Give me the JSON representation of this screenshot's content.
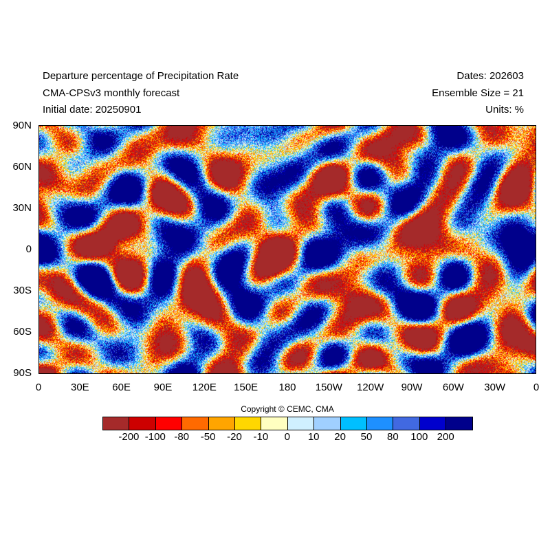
{
  "header": {
    "title": "Departure percentage of Precipitation Rate",
    "subtitle": "CMA-CPSv3 monthly forecast",
    "initial_date": "Initial date: 20250901",
    "dates": "Dates: 202603",
    "ensemble": "Ensemble Size = 21",
    "units": "Units: %"
  },
  "lat_labels": [
    "90N",
    "60N",
    "30N",
    "0",
    "30S",
    "60S",
    "90S"
  ],
  "lon_labels": [
    "0",
    "30E",
    "60E",
    "90E",
    "120E",
    "150E",
    "180",
    "150W",
    "120W",
    "90W",
    "60W",
    "30W",
    "0"
  ],
  "copyright": "Copyright © CEMC, CMA",
  "colorbar": {
    "colors": [
      "#a52a2a",
      "#cd0000",
      "#ff0000",
      "#ff6a00",
      "#ffa500",
      "#ffd700",
      "#ffffc0",
      "#d0f0ff",
      "#a0d0ff",
      "#00bfff",
      "#1e90ff",
      "#4169e1",
      "#0000cd",
      "#00008b"
    ],
    "labels": [
      "-200",
      "-100",
      "-80",
      "-50",
      "-20",
      "-10",
      "0",
      "10",
      "20",
      "50",
      "80",
      "100",
      "200"
    ]
  }
}
